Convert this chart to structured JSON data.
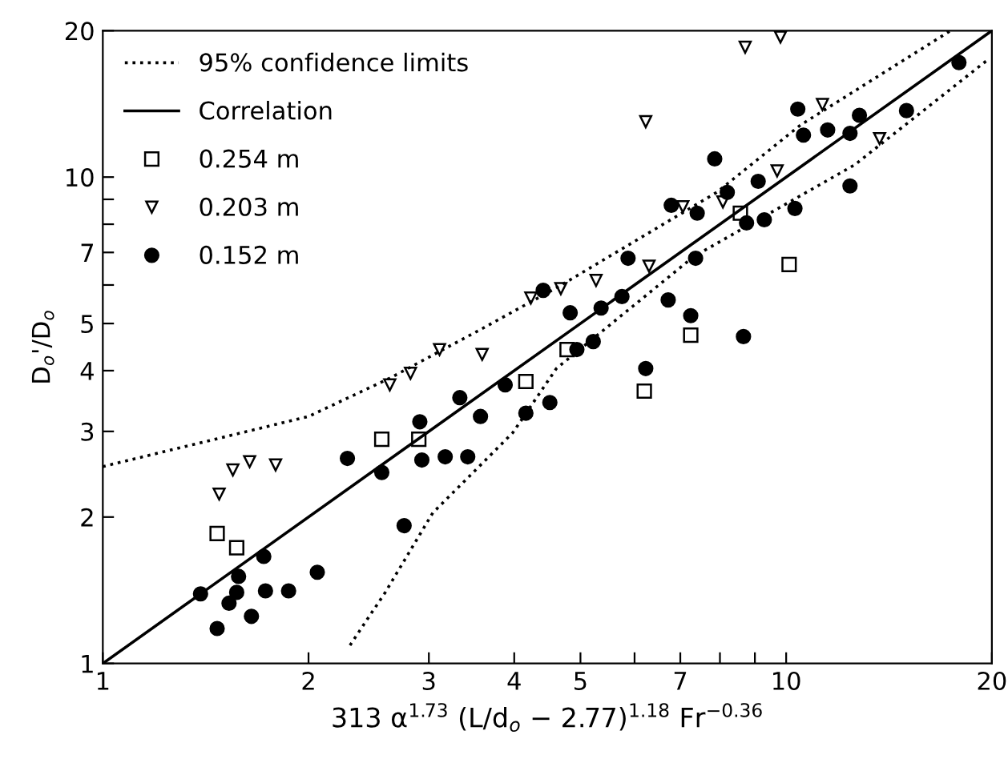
{
  "chart_data": {
    "type": "scatter",
    "xlabel": "313 α$^{1.73}$ (L/d$_{o}$ − 2.77)$^{1.18}$ Fr$^{−0.36}$",
    "ylabel": "D$_{o}$'/D$_{o}$",
    "log": "xy",
    "xlim": [
      1,
      20
    ],
    "ylim": [
      1,
      20
    ],
    "xticks": [
      1,
      2,
      3,
      4,
      5,
      {
        "value": 6,
        "label": null
      },
      7,
      {
        "value": 8,
        "label": null
      },
      {
        "value": 9,
        "label": null
      },
      10,
      20
    ],
    "yticks": [
      1,
      2,
      3,
      4,
      5,
      {
        "value": 6,
        "label": null
      },
      7,
      {
        "value": 8,
        "label": null
      },
      {
        "value": 9,
        "label": null
      },
      10,
      20
    ],
    "grid": false,
    "legend": "top left",
    "series": [
      {
        "name": "95% confidence limits",
        "type": "line",
        "line_style": "dotted",
        "marker": "none",
        "color": "#000000",
        "x": [
          1,
          2,
          2.63,
          3.59,
          4.68,
          7.91,
          10.5,
          17.4
        ],
        "values": [
          2.54,
          3.22,
          3.86,
          4.88,
          5.99,
          9.3,
          12.8,
          20
        ]
      },
      {
        "name": "Correlation",
        "type": "line",
        "line_style": "solid",
        "marker": "none",
        "color": "#000000",
        "x": [
          1,
          20
        ],
        "values": [
          1,
          20
        ]
      },
      {
        "type": "line",
        "line_style": "dotted",
        "marker": "none",
        "color": "#000000",
        "x": [
          2.3,
          2.59,
          3.04,
          3.98,
          4.61,
          7.33,
          12.6,
          19.8
        ],
        "values": [
          1.09,
          1.4,
          2.04,
          2.98,
          4.04,
          6.87,
          10.6,
          17.5
        ]
      },
      {
        "name": "0.254 m",
        "marker": "square",
        "color": "#000000",
        "x": [
          1.47,
          1.57,
          2.56,
          2.9,
          4.78,
          4.16,
          6.2,
          7.25,
          8.57,
          10.1
        ],
        "values": [
          1.85,
          1.73,
          2.89,
          2.89,
          4.42,
          3.8,
          3.63,
          4.73,
          8.43,
          6.61
        ]
      },
      {
        "name": "0.203 m",
        "marker": "triangle",
        "color": "#000000",
        "x": [
          1.48,
          1.55,
          1.64,
          1.79,
          2.63,
          2.82,
          3.11,
          3.59,
          4.23,
          4.68,
          5.27,
          6.3,
          6.23,
          7.06,
          8.08,
          8.71,
          9.81,
          9.7,
          11.3,
          13.7
        ],
        "values": [
          2.23,
          2.5,
          2.6,
          2.56,
          3.74,
          3.95,
          4.42,
          4.32,
          5.64,
          5.9,
          6.13,
          6.56,
          13.0,
          8.69,
          8.89,
          18.5,
          19.4,
          10.3,
          14.1,
          12.0
        ]
      },
      {
        "name": "0.152 m",
        "marker": "circle",
        "color": "#000000",
        "x": [
          1.39,
          1.47,
          1.53,
          1.58,
          1.57,
          1.65,
          1.72,
          1.73,
          1.87,
          2.06,
          2.28,
          2.56,
          2.76,
          2.91,
          2.93,
          3.17,
          3.33,
          3.42,
          3.57,
          3.88,
          4.16,
          4.51,
          4.41,
          4.83,
          5.36,
          5.75,
          5.87,
          5.22,
          4.94,
          6.23,
          6.72,
          7.25,
          8.66,
          7.37,
          7.41,
          6.79,
          7.86,
          8.2,
          9.1,
          8.75,
          9.29,
          10.3,
          10.4,
          10.6,
          11.5,
          12.4,
          12.4,
          12.8,
          15.0,
          17.9
        ],
        "values": [
          1.39,
          1.18,
          1.33,
          1.51,
          1.4,
          1.25,
          1.66,
          1.41,
          1.41,
          1.54,
          2.64,
          2.47,
          1.92,
          3.14,
          2.62,
          2.66,
          3.52,
          2.66,
          3.22,
          3.74,
          3.27,
          3.44,
          5.85,
          5.26,
          5.38,
          5.68,
          6.81,
          4.59,
          4.42,
          4.04,
          5.59,
          5.19,
          4.7,
          6.81,
          8.43,
          8.75,
          10.9,
          9.3,
          9.8,
          8.05,
          8.17,
          8.62,
          13.8,
          12.2,
          12.5,
          9.59,
          12.3,
          13.4,
          13.7,
          17.2
        ]
      }
    ]
  }
}
